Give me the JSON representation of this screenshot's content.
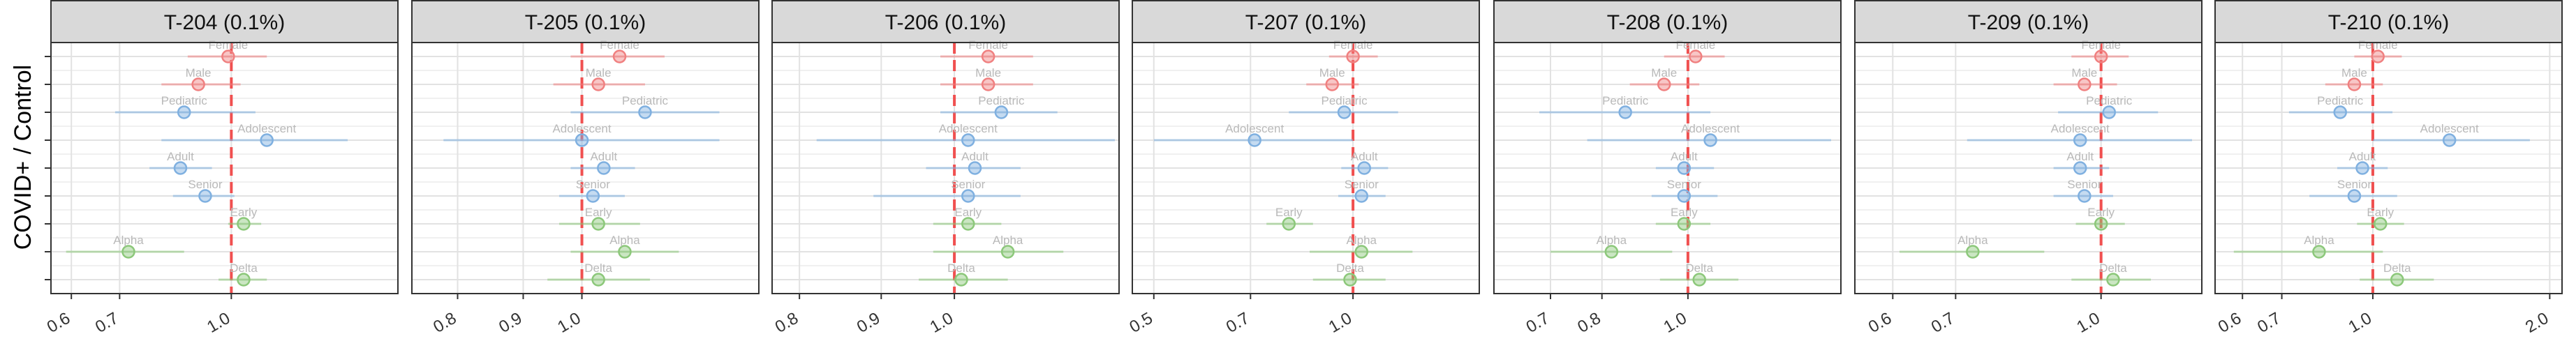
{
  "ylabel": "COVID+ / Control",
  "colors": {
    "sex": "#f08080",
    "age": "#7fb0e0",
    "variant": "#8cc87a",
    "refline": "#f05050",
    "strip": "#d9d9d9"
  },
  "chart_data": [
    {
      "type": "forest",
      "panel": "T-204 (0.1%)",
      "ticks": [
        "0.6",
        "0.7",
        "1.0"
      ],
      "tick_values": [
        0.6,
        0.7,
        1.0
      ],
      "xlim": [
        0.58,
        1.65
      ],
      "log_scale": true,
      "points": [
        {
          "label": "Female",
          "group": "sex",
          "est": 0.99,
          "lo": 0.87,
          "hi": 1.12
        },
        {
          "label": "Male",
          "group": "sex",
          "est": 0.9,
          "lo": 0.8,
          "hi": 1.03
        },
        {
          "label": "Pediatric",
          "group": "age",
          "est": 0.86,
          "lo": 0.69,
          "hi": 1.08
        },
        {
          "label": "Adolescent",
          "group": "age",
          "est": 1.12,
          "lo": 0.8,
          "hi": 1.45
        },
        {
          "label": "Adult",
          "group": "age",
          "est": 0.85,
          "lo": 0.77,
          "hi": 0.94
        },
        {
          "label": "Senior",
          "group": "age",
          "est": 0.92,
          "lo": 0.83,
          "hi": 1.01
        },
        {
          "label": "Early",
          "group": "variant",
          "est": 1.04,
          "lo": 0.99,
          "hi": 1.1
        },
        {
          "label": "Alpha",
          "group": "variant",
          "est": 0.72,
          "lo": 0.59,
          "hi": 0.86
        },
        {
          "label": "Delta",
          "group": "variant",
          "est": 1.04,
          "lo": 0.96,
          "hi": 1.12
        }
      ]
    },
    {
      "type": "forest",
      "panel": "T-205 (0.1%)",
      "ticks": [
        "0.8",
        "0.9",
        "1.0"
      ],
      "tick_values": [
        0.8,
        0.9,
        1.0
      ],
      "xlim": [
        0.75,
        1.35
      ],
      "log_scale": true,
      "points": [
        {
          "label": "Female",
          "group": "sex",
          "est": 1.07,
          "lo": 0.98,
          "hi": 1.16
        },
        {
          "label": "Male",
          "group": "sex",
          "est": 1.03,
          "lo": 0.95,
          "hi": 1.12
        },
        {
          "label": "Pediatric",
          "group": "age",
          "est": 1.12,
          "lo": 0.98,
          "hi": 1.28
        },
        {
          "label": "Adolescent",
          "group": "age",
          "est": 1.0,
          "lo": 0.78,
          "hi": 1.28
        },
        {
          "label": "Adult",
          "group": "age",
          "est": 1.04,
          "lo": 0.98,
          "hi": 1.1
        },
        {
          "label": "Senior",
          "group": "age",
          "est": 1.02,
          "lo": 0.96,
          "hi": 1.08
        },
        {
          "label": "Early",
          "group": "variant",
          "est": 1.03,
          "lo": 0.96,
          "hi": 1.11
        },
        {
          "label": "Alpha",
          "group": "variant",
          "est": 1.08,
          "lo": 0.98,
          "hi": 1.19
        },
        {
          "label": "Delta",
          "group": "variant",
          "est": 1.03,
          "lo": 0.94,
          "hi": 1.13
        }
      ]
    },
    {
      "type": "forest",
      "panel": "T-206 (0.1%)",
      "ticks": [
        "0.8",
        "0.9",
        "1.0"
      ],
      "tick_values": [
        0.8,
        0.9,
        1.0
      ],
      "xlim": [
        0.78,
        1.25
      ],
      "log_scale": true,
      "points": [
        {
          "label": "Female",
          "group": "sex",
          "est": 1.05,
          "lo": 0.98,
          "hi": 1.12
        },
        {
          "label": "Male",
          "group": "sex",
          "est": 1.05,
          "lo": 0.98,
          "hi": 1.12
        },
        {
          "label": "Pediatric",
          "group": "age",
          "est": 1.07,
          "lo": 0.98,
          "hi": 1.16
        },
        {
          "label": "Adolescent",
          "group": "age",
          "est": 1.02,
          "lo": 0.82,
          "hi": 1.26
        },
        {
          "label": "Adult",
          "group": "age",
          "est": 1.03,
          "lo": 0.96,
          "hi": 1.1
        },
        {
          "label": "Senior",
          "group": "age",
          "est": 1.02,
          "lo": 0.89,
          "hi": 1.1
        },
        {
          "label": "Early",
          "group": "variant",
          "est": 1.02,
          "lo": 0.97,
          "hi": 1.07
        },
        {
          "label": "Alpha",
          "group": "variant",
          "est": 1.08,
          "lo": 0.97,
          "hi": 1.17
        },
        {
          "label": "Delta",
          "group": "variant",
          "est": 1.01,
          "lo": 0.95,
          "hi": 1.08
        }
      ]
    },
    {
      "type": "forest",
      "panel": "T-207 (0.1%)",
      "ticks": [
        "0.5",
        "0.7",
        "1.0"
      ],
      "tick_values": [
        0.5,
        0.7,
        1.0
      ],
      "xlim": [
        0.48,
        1.5
      ],
      "log_scale": true,
      "points": [
        {
          "label": "Female",
          "group": "sex",
          "est": 1.0,
          "lo": 0.92,
          "hi": 1.09
        },
        {
          "label": "Male",
          "group": "sex",
          "est": 0.93,
          "lo": 0.85,
          "hi": 1.02
        },
        {
          "label": "Pediatric",
          "group": "age",
          "est": 0.97,
          "lo": 0.8,
          "hi": 1.17
        },
        {
          "label": "Adolescent",
          "group": "age",
          "est": 0.71,
          "lo": 0.5,
          "hi": 1.0
        },
        {
          "label": "Adult",
          "group": "age",
          "est": 1.04,
          "lo": 0.96,
          "hi": 1.13
        },
        {
          "label": "Senior",
          "group": "age",
          "est": 1.03,
          "lo": 0.95,
          "hi": 1.12
        },
        {
          "label": "Early",
          "group": "variant",
          "est": 0.8,
          "lo": 0.74,
          "hi": 0.87
        },
        {
          "label": "Alpha",
          "group": "variant",
          "est": 1.03,
          "lo": 0.86,
          "hi": 1.23
        },
        {
          "label": "Delta",
          "group": "variant",
          "est": 0.99,
          "lo": 0.87,
          "hi": 1.12
        }
      ]
    },
    {
      "type": "forest",
      "panel": "T-208 (0.1%)",
      "ticks": [
        "0.7",
        "0.8",
        "1.0"
      ],
      "tick_values": [
        0.7,
        0.8,
        1.0
      ],
      "xlim": [
        0.62,
        1.45
      ],
      "log_scale": true,
      "points": [
        {
          "label": "Female",
          "group": "sex",
          "est": 1.02,
          "lo": 0.94,
          "hi": 1.1
        },
        {
          "label": "Male",
          "group": "sex",
          "est": 0.94,
          "lo": 0.86,
          "hi": 1.03
        },
        {
          "label": "Pediatric",
          "group": "age",
          "est": 0.85,
          "lo": 0.68,
          "hi": 1.06
        },
        {
          "label": "Adolescent",
          "group": "age",
          "est": 1.06,
          "lo": 0.77,
          "hi": 1.45
        },
        {
          "label": "Adult",
          "group": "age",
          "est": 0.99,
          "lo": 0.92,
          "hi": 1.07
        },
        {
          "label": "Senior",
          "group": "age",
          "est": 0.99,
          "lo": 0.91,
          "hi": 1.08
        },
        {
          "label": "Early",
          "group": "variant",
          "est": 0.99,
          "lo": 0.92,
          "hi": 1.06
        },
        {
          "label": "Alpha",
          "group": "variant",
          "est": 0.82,
          "lo": 0.7,
          "hi": 0.96
        },
        {
          "label": "Delta",
          "group": "variant",
          "est": 1.03,
          "lo": 0.93,
          "hi": 1.14
        }
      ]
    },
    {
      "type": "forest",
      "panel": "T-209 (0.1%)",
      "ticks": [
        "0.6",
        "0.7",
        "1.0"
      ],
      "tick_values": [
        0.6,
        0.7,
        1.0
      ],
      "xlim": [
        0.56,
        1.25
      ],
      "log_scale": true,
      "points": [
        {
          "label": "Female",
          "group": "sex",
          "est": 1.0,
          "lo": 0.93,
          "hi": 1.07
        },
        {
          "label": "Male",
          "group": "sex",
          "est": 0.96,
          "lo": 0.89,
          "hi": 1.04
        },
        {
          "label": "Pediatric",
          "group": "age",
          "est": 1.02,
          "lo": 0.9,
          "hi": 1.15
        },
        {
          "label": "Adolescent",
          "group": "age",
          "est": 0.95,
          "lo": 0.72,
          "hi": 1.25
        },
        {
          "label": "Adult",
          "group": "age",
          "est": 0.95,
          "lo": 0.89,
          "hi": 1.02
        },
        {
          "label": "Senior",
          "group": "age",
          "est": 0.96,
          "lo": 0.89,
          "hi": 1.03
        },
        {
          "label": "Early",
          "group": "variant",
          "est": 1.0,
          "lo": 0.94,
          "hi": 1.06
        },
        {
          "label": "Alpha",
          "group": "variant",
          "est": 0.73,
          "lo": 0.61,
          "hi": 0.87
        },
        {
          "label": "Delta",
          "group": "variant",
          "est": 1.03,
          "lo": 0.93,
          "hi": 1.13
        }
      ]
    },
    {
      "type": "forest",
      "panel": "T-210 (0.1%)",
      "ticks": [
        "0.6",
        "0.7",
        "1.0",
        "2.0"
      ],
      "tick_values": [
        0.6,
        0.7,
        1.0,
        2.0
      ],
      "xlim": [
        0.56,
        2.02
      ],
      "log_scale": true,
      "points": [
        {
          "label": "Female",
          "group": "sex",
          "est": 1.02,
          "lo": 0.93,
          "hi": 1.12
        },
        {
          "label": "Male",
          "group": "sex",
          "est": 0.93,
          "lo": 0.83,
          "hi": 1.04
        },
        {
          "label": "Pediatric",
          "group": "age",
          "est": 0.88,
          "lo": 0.72,
          "hi": 1.08
        },
        {
          "label": "Adolescent",
          "group": "age",
          "est": 1.35,
          "lo": 1.0,
          "hi": 1.85
        },
        {
          "label": "Adult",
          "group": "age",
          "est": 0.96,
          "lo": 0.87,
          "hi": 1.06
        },
        {
          "label": "Senior",
          "group": "age",
          "est": 0.93,
          "lo": 0.78,
          "hi": 1.1
        },
        {
          "label": "Early",
          "group": "variant",
          "est": 1.03,
          "lo": 0.94,
          "hi": 1.13
        },
        {
          "label": "Alpha",
          "group": "variant",
          "est": 0.81,
          "lo": 0.58,
          "hi": 1.04
        },
        {
          "label": "Delta",
          "group": "variant",
          "est": 1.1,
          "lo": 0.95,
          "hi": 1.27
        }
      ]
    }
  ]
}
